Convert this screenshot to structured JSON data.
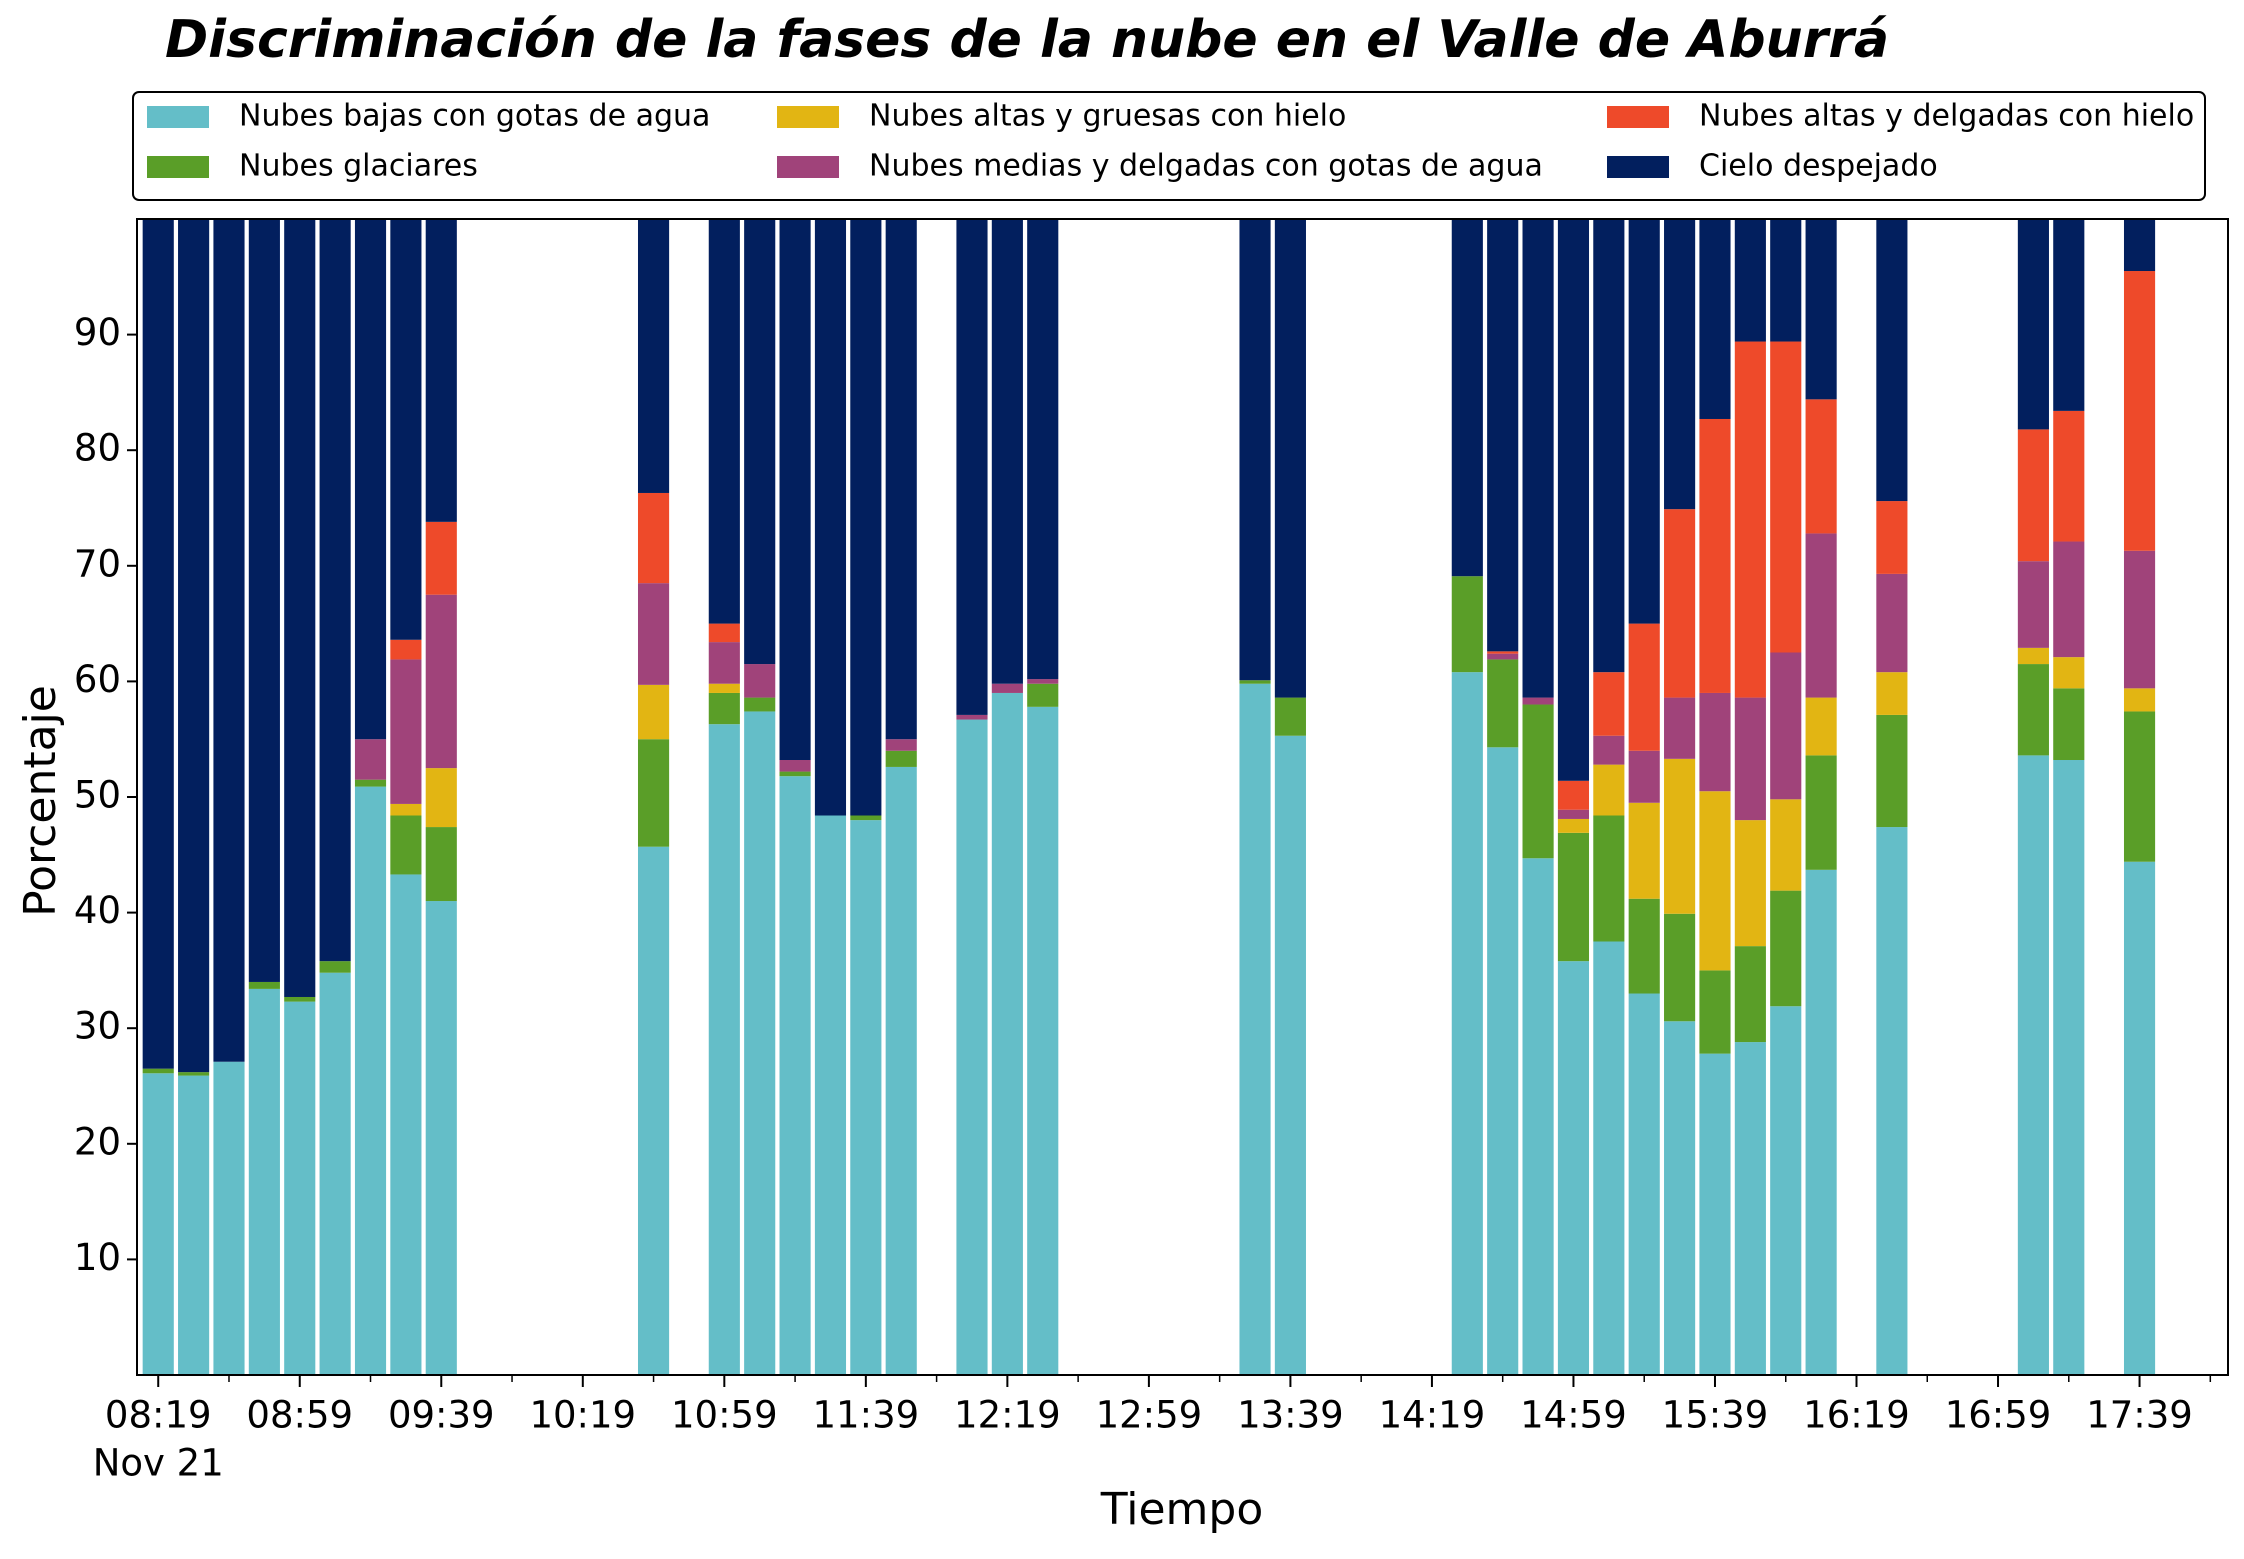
{
  "chart_data": {
    "type": "stacked_bar",
    "title": "Discriminación de la fases de la nube en el Valle de Aburrá",
    "xlabel": "Tiempo",
    "ylabel": "Porcentaje",
    "xdate": "Nov 21",
    "x": [
      "08:19",
      "08:29",
      "08:39",
      "08:49",
      "08:59",
      "09:09",
      "09:19",
      "09:29",
      "09:39",
      "10:39",
      "10:59",
      "11:09",
      "11:19",
      "11:29",
      "11:39",
      "11:49",
      "12:09",
      "12:19",
      "12:29",
      "13:29",
      "13:39",
      "14:29",
      "14:39",
      "14:49",
      "14:59",
      "15:09",
      "15:19",
      "15:29",
      "15:39",
      "15:49",
      "15:59",
      "16:09",
      "16:29",
      "17:09",
      "17:19",
      "17:39"
    ],
    "xlim": [
      "08:13",
      "18:04"
    ],
    "xticks": [
      "08:19",
      "08:59",
      "09:39",
      "10:19",
      "10:59",
      "11:39",
      "12:19",
      "12:59",
      "13:39",
      "14:19",
      "14:59",
      "15:39",
      "16:19",
      "16:59",
      "17:39"
    ],
    "xminorticks": [
      "08:39",
      "09:19",
      "09:59",
      "10:39",
      "11:19",
      "11:59",
      "12:39",
      "13:19",
      "13:59",
      "14:39",
      "15:19",
      "15:59",
      "16:39",
      "17:19",
      "17:59"
    ],
    "ylim": [
      0,
      100
    ],
    "yticks": [
      10,
      20,
      30,
      40,
      50,
      60,
      70,
      80,
      90
    ],
    "legend": "top",
    "series": [
      {
        "name": "Nubes bajas con gotas de agua",
        "color": "#64bec8",
        "values": [
          26.1,
          25.9,
          27.1,
          33.4,
          32.3,
          34.8,
          50.9,
          43.3,
          41.0,
          45.7,
          56.3,
          57.4,
          51.8,
          48.4,
          48.0,
          52.6,
          56.7,
          59.0,
          57.8,
          59.8,
          55.3,
          60.8,
          54.3,
          44.7,
          35.8,
          37.5,
          33.0,
          30.6,
          27.8,
          28.8,
          31.9,
          43.7,
          47.4,
          53.6,
          53.2,
          44.4
        ]
      },
      {
        "name": "Nubes glaciares",
        "color": "#5a9e28",
        "values": [
          0.4,
          0.3,
          0,
          0.6,
          0.4,
          1.0,
          0.6,
          5.1,
          6.4,
          9.3,
          2.7,
          1.2,
          0.4,
          0,
          0.4,
          1.4,
          0,
          0,
          2.0,
          0.3,
          3.3,
          8.3,
          7.6,
          13.3,
          11.1,
          10.9,
          8.2,
          9.3,
          7.2,
          8.3,
          10.0,
          9.9,
          9.7,
          7.9,
          6.2,
          13.0
        ]
      },
      {
        "name": "Nubes altas y gruesas con hielo",
        "color": "#e2b513",
        "values": [
          0,
          0,
          0,
          0,
          0,
          0,
          0,
          1.0,
          5.1,
          4.7,
          0.8,
          0,
          0,
          0,
          0,
          0,
          0,
          0,
          0,
          0,
          0,
          0,
          0,
          0,
          1.2,
          4.4,
          8.3,
          13.4,
          15.5,
          10.9,
          7.9,
          5.0,
          3.7,
          1.4,
          2.7,
          2.0
        ]
      },
      {
        "name": "Nubes medias y delgadas con gotas de agua",
        "color": "#a0437a",
        "values": [
          0,
          0,
          0,
          0,
          0,
          0,
          3.5,
          12.5,
          15.0,
          8.8,
          3.6,
          2.9,
          1.0,
          0,
          0,
          1.0,
          0.4,
          0.8,
          0.4,
          0,
          0,
          0,
          0.5,
          0.6,
          0.8,
          2.5,
          4.5,
          5.3,
          8.5,
          10.6,
          12.7,
          14.2,
          8.5,
          7.5,
          10.0,
          11.9
        ]
      },
      {
        "name": "Nubes altas y delgadas con hielo",
        "color": "#ee4a2a",
        "values": [
          0,
          0,
          0,
          0,
          0,
          0,
          0,
          1.7,
          6.3,
          7.8,
          1.6,
          0,
          0,
          0,
          0,
          0,
          0,
          0,
          0,
          0,
          0,
          0,
          0.2,
          0,
          2.5,
          5.5,
          11.0,
          16.3,
          23.7,
          30.8,
          26.9,
          11.6,
          6.3,
          11.4,
          11.3,
          24.2
        ]
      },
      {
        "name": "Cielo despejado",
        "color": "#021f5e",
        "values": [
          73.5,
          73.8,
          72.9,
          66.0,
          67.3,
          64.2,
          45.0,
          36.4,
          26.2,
          23.7,
          35.0,
          38.5,
          46.8,
          51.6,
          51.6,
          45.0,
          42.9,
          40.2,
          39.8,
          39.9,
          41.4,
          30.9,
          37.4,
          41.4,
          48.6,
          39.2,
          35.0,
          25.1,
          17.3,
          10.6,
          10.6,
          15.6,
          24.4,
          18.2,
          16.6,
          4.5
        ]
      }
    ]
  }
}
